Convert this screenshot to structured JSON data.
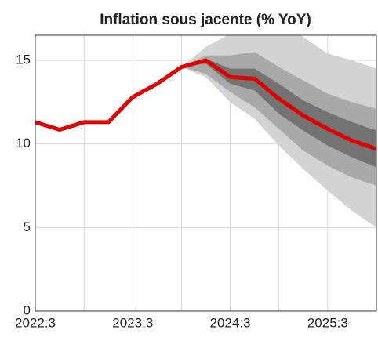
{
  "chart_data": {
    "type": "fan",
    "title": "Inflation sous jacente (% YoY)",
    "categories": [
      "2022:3",
      null,
      null,
      null,
      "2023:3",
      null,
      null,
      null,
      "2024:3",
      null,
      null,
      null,
      "2025:3",
      null,
      null
    ],
    "series": [
      {
        "color": "#e00000",
        "values": [
          11.3,
          10.85,
          11.3,
          11.3,
          12.8,
          13.6,
          14.6,
          15.0,
          14.0,
          13.9,
          12.7,
          11.7,
          10.9,
          10.2,
          9.7
        ]
      }
    ],
    "bands": [
      {
        "color": "#d3d3d3",
        "upper": [
          null,
          null,
          null,
          null,
          null,
          null,
          14.6,
          15.8,
          16.6,
          17.0,
          17.0,
          16.4,
          15.4,
          15.0,
          14.5
        ],
        "lower": [
          null,
          null,
          null,
          null,
          null,
          null,
          14.6,
          14.0,
          12.5,
          11.5,
          9.9,
          8.5,
          7.2,
          6.0,
          5.0
        ]
      },
      {
        "color": "#a9a9a9",
        "upper": [
          null,
          null,
          null,
          null,
          null,
          null,
          14.6,
          15.3,
          15.3,
          15.5,
          14.6,
          13.8,
          13.0,
          12.5,
          12.1
        ],
        "lower": [
          null,
          null,
          null,
          null,
          null,
          null,
          14.6,
          14.2,
          13.1,
          12.2,
          10.9,
          9.6,
          8.7,
          8.0,
          7.5
        ]
      },
      {
        "color": "#737373",
        "upper": [
          null,
          null,
          null,
          null,
          null,
          null,
          14.6,
          15.1,
          14.5,
          14.5,
          13.6,
          12.6,
          11.9,
          11.3,
          10.8
        ],
        "lower": [
          null,
          null,
          null,
          null,
          null,
          null,
          14.6,
          14.8,
          13.6,
          13.2,
          11.8,
          10.8,
          9.9,
          9.2,
          8.6
        ]
      }
    ],
    "ylim": [
      0,
      16.5
    ],
    "yticks": [
      0,
      5,
      10,
      15
    ],
    "grid": true
  }
}
